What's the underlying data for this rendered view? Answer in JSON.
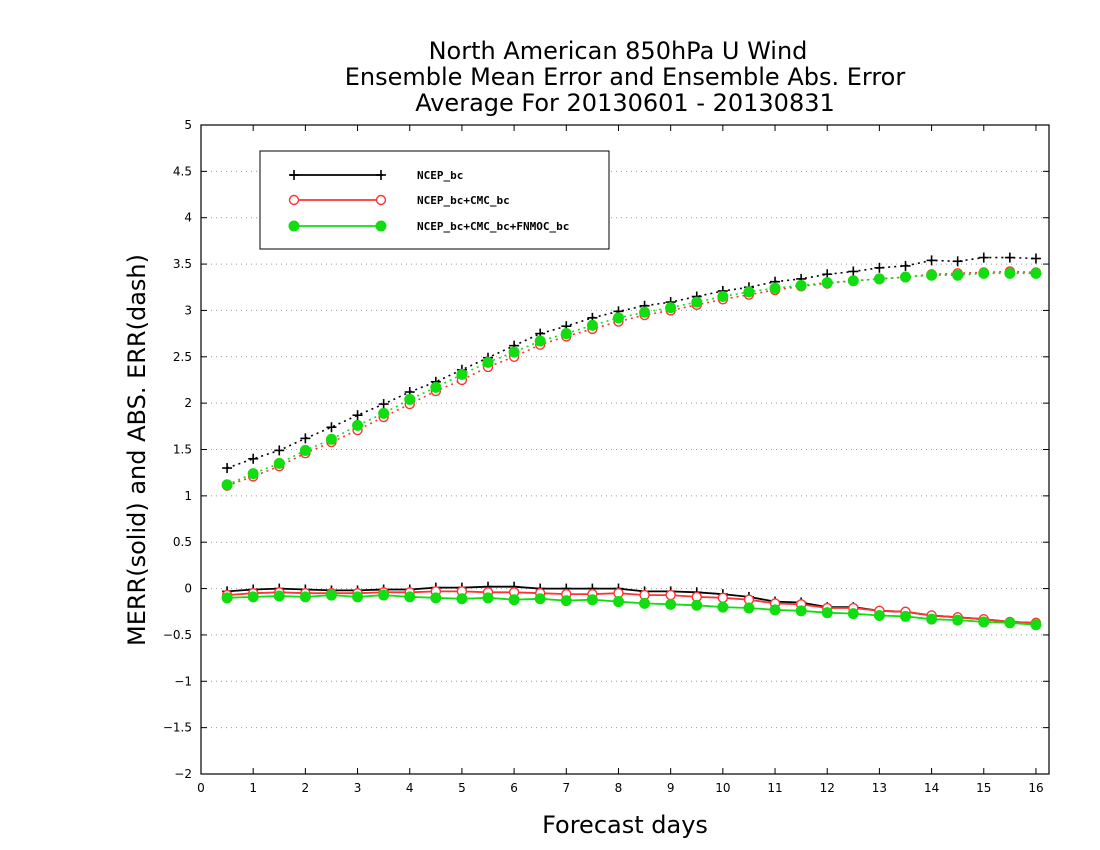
{
  "chart_data": {
    "type": "line",
    "title_lines": [
      "North American 850hPa U Wind",
      "Ensemble Mean Error and Ensemble Abs. Error",
      "Average For 20130601 - 20130831"
    ],
    "xlabel": "Forecast days",
    "ylabel": "MERR(solid) and ABS. ERR(dash)",
    "xlim": [
      0,
      16.25
    ],
    "ylim": [
      -2,
      5
    ],
    "x_ticks": [
      0,
      1,
      2,
      3,
      4,
      5,
      6,
      7,
      8,
      9,
      10,
      11,
      12,
      13,
      14,
      15,
      16
    ],
    "y_ticks": [
      -2,
      -1.5,
      -1,
      -0.5,
      0,
      0.5,
      1,
      1.5,
      2,
      2.5,
      3,
      3.5,
      4,
      4.5,
      5
    ],
    "y_tick_labels": [
      "−2",
      "−1.5",
      "−1",
      "−0.5",
      "0",
      "0.5",
      "1",
      "1.5",
      "2",
      "2.5",
      "3",
      "3.5",
      "4",
      "4.5",
      "5"
    ],
    "grid": "horizontal dotted",
    "legend_position": "top-left",
    "x": [
      0.5,
      1.0,
      1.5,
      2.0,
      2.5,
      3.0,
      3.5,
      4.0,
      4.5,
      5.0,
      5.5,
      6.0,
      6.5,
      7.0,
      7.5,
      8.0,
      8.5,
      9.0,
      9.5,
      10.0,
      10.5,
      11.0,
      11.5,
      12.0,
      12.5,
      13.0,
      13.5,
      14.0,
      14.5,
      15.0,
      15.5,
      16.0
    ],
    "series": [
      {
        "name": "NCEP_bc",
        "color": "#000000",
        "marker": "plus",
        "abs_err": [
          1.3,
          1.4,
          1.49,
          1.62,
          1.74,
          1.87,
          1.99,
          2.12,
          2.23,
          2.36,
          2.49,
          2.62,
          2.75,
          2.83,
          2.92,
          2.99,
          3.05,
          3.09,
          3.15,
          3.21,
          3.25,
          3.31,
          3.34,
          3.39,
          3.42,
          3.46,
          3.48,
          3.54,
          3.53,
          3.57,
          3.57,
          3.56
        ],
        "mean_err": [
          -0.03,
          -0.01,
          0.0,
          -0.01,
          -0.02,
          -0.02,
          -0.01,
          -0.01,
          0.01,
          0.01,
          0.02,
          0.02,
          0.0,
          0.0,
          0.0,
          0.0,
          -0.03,
          -0.03,
          -0.04,
          -0.06,
          -0.09,
          -0.14,
          -0.15,
          -0.2,
          -0.2,
          -0.24,
          -0.25,
          -0.29,
          -0.31,
          -0.33,
          -0.36,
          -0.37
        ]
      },
      {
        "name": "NCEP_bc+CMC_bc",
        "color": "#ff3333",
        "marker": "open-circle",
        "abs_err": [
          1.11,
          1.21,
          1.32,
          1.46,
          1.58,
          1.71,
          1.85,
          1.99,
          2.13,
          2.25,
          2.39,
          2.5,
          2.63,
          2.72,
          2.8,
          2.88,
          2.95,
          3.0,
          3.06,
          3.12,
          3.17,
          3.22,
          3.26,
          3.29,
          3.32,
          3.34,
          3.36,
          3.39,
          3.4,
          3.41,
          3.42,
          3.41
        ],
        "mean_err": [
          -0.07,
          -0.05,
          -0.04,
          -0.05,
          -0.05,
          -0.05,
          -0.04,
          -0.04,
          -0.03,
          -0.03,
          -0.04,
          -0.04,
          -0.05,
          -0.06,
          -0.06,
          -0.05,
          -0.07,
          -0.07,
          -0.09,
          -0.1,
          -0.12,
          -0.16,
          -0.17,
          -0.21,
          -0.21,
          -0.24,
          -0.25,
          -0.29,
          -0.31,
          -0.33,
          -0.36,
          -0.37
        ]
      },
      {
        "name": "NCEP_bc+CMC_bc+FNMOC_bc",
        "color": "#11dd11",
        "marker": "filled-circle",
        "abs_err": [
          1.12,
          1.24,
          1.35,
          1.49,
          1.61,
          1.76,
          1.89,
          2.04,
          2.17,
          2.31,
          2.44,
          2.55,
          2.67,
          2.75,
          2.84,
          2.92,
          2.98,
          3.03,
          3.09,
          3.15,
          3.2,
          3.24,
          3.27,
          3.3,
          3.32,
          3.34,
          3.36,
          3.38,
          3.38,
          3.4,
          3.4,
          3.4
        ],
        "mean_err": [
          -0.1,
          -0.09,
          -0.08,
          -0.09,
          -0.07,
          -0.09,
          -0.07,
          -0.09,
          -0.1,
          -0.11,
          -0.1,
          -0.12,
          -0.11,
          -0.13,
          -0.12,
          -0.14,
          -0.16,
          -0.17,
          -0.18,
          -0.2,
          -0.21,
          -0.23,
          -0.24,
          -0.26,
          -0.27,
          -0.29,
          -0.3,
          -0.33,
          -0.34,
          -0.36,
          -0.37,
          -0.39
        ]
      }
    ]
  }
}
